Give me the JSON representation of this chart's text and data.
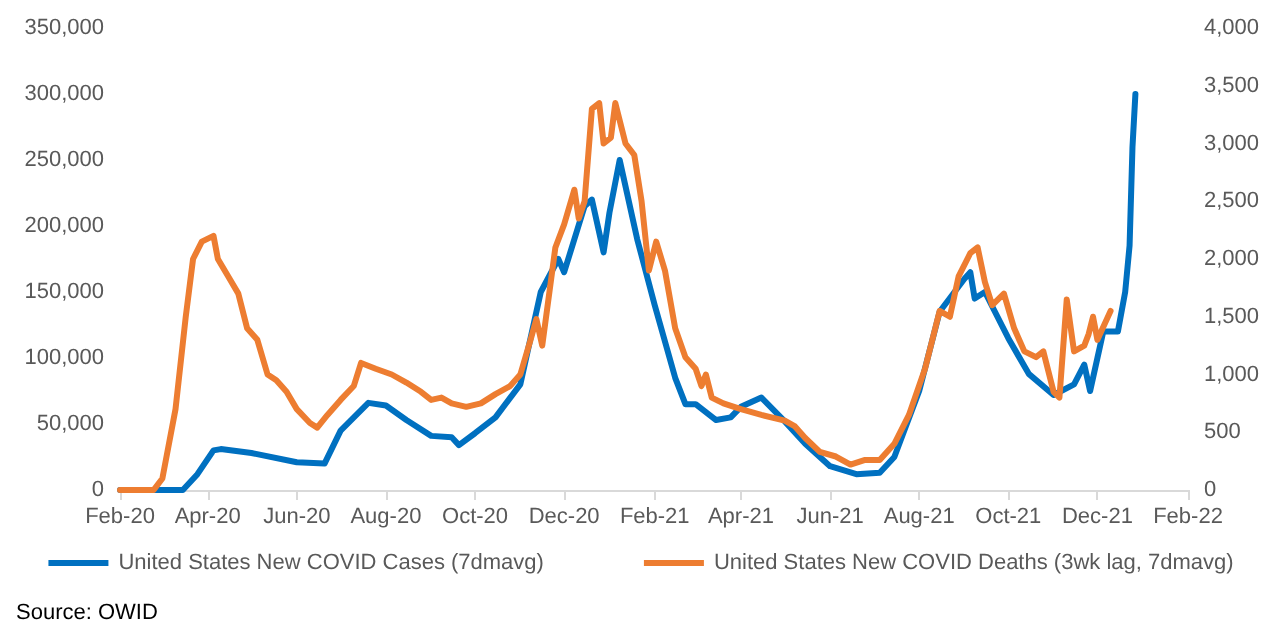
{
  "chart_data": {
    "type": "line",
    "xlim": [
      "2020-02-01",
      "2022-02-01"
    ],
    "xticks": [
      {
        "value": "2020-02-01",
        "label": "Feb-20"
      },
      {
        "value": "2020-04-01",
        "label": "Apr-20"
      },
      {
        "value": "2020-06-01",
        "label": "Jun-20"
      },
      {
        "value": "2020-08-01",
        "label": "Aug-20"
      },
      {
        "value": "2020-10-01",
        "label": "Oct-20"
      },
      {
        "value": "2020-12-01",
        "label": "Dec-20"
      },
      {
        "value": "2021-02-01",
        "label": "Feb-21"
      },
      {
        "value": "2021-04-01",
        "label": "Apr-21"
      },
      {
        "value": "2021-06-01",
        "label": "Jun-21"
      },
      {
        "value": "2021-08-01",
        "label": "Aug-21"
      },
      {
        "value": "2021-10-01",
        "label": "Oct-21"
      },
      {
        "value": "2021-12-01",
        "label": "Dec-21"
      },
      {
        "value": "2022-02-01",
        "label": "Feb-22"
      }
    ],
    "ylim": [
      0,
      350000
    ],
    "yticks": [
      0,
      {
        "value": 50000,
        "label": "50,000"
      },
      {
        "value": 100000,
        "label": "100,000"
      },
      {
        "value": 150000,
        "label": "150,000"
      },
      {
        "value": 200000,
        "label": "200,000"
      },
      {
        "value": 250000,
        "label": "250,000"
      },
      {
        "value": 300000,
        "label": "300,000"
      },
      {
        "value": 350000,
        "label": "350,000"
      }
    ],
    "y2lim": [
      0,
      4000
    ],
    "y2ticks": [
      0,
      500,
      {
        "value": 1000,
        "label": "1,000"
      },
      {
        "value": 1500,
        "label": "1,500"
      },
      {
        "value": 2000,
        "label": "2,000"
      },
      {
        "value": 2500,
        "label": "2,500"
      },
      {
        "value": 3000,
        "label": "3,000"
      },
      {
        "value": 3500,
        "label": "3,500"
      },
      {
        "value": 4000,
        "label": "4,000"
      }
    ],
    "grid": false,
    "legend": "bottom",
    "marker": "none",
    "line_style": "solid",
    "annotations": [
      "Source: OWID"
    ],
    "series": [
      {
        "name": "United States New COVID Cases (7dmavg)",
        "color": "#0070c0",
        "x": [
          "2020-02-01",
          "2020-03-15",
          "2020-03-25",
          "2020-04-05",
          "2020-04-10",
          "2020-05-01",
          "2020-06-01",
          "2020-06-20",
          "2020-07-01",
          "2020-07-20",
          "2020-08-01",
          "2020-08-15",
          "2020-09-01",
          "2020-09-15",
          "2020-09-20",
          "2020-10-01",
          "2020-10-15",
          "2020-11-01",
          "2020-11-15",
          "2020-11-27",
          "2020-12-01",
          "2020-12-15",
          "2020-12-20",
          "2020-12-28",
          "2021-01-01",
          "2021-01-08",
          "2021-01-20",
          "2021-02-01",
          "2021-02-15",
          "2021-02-22",
          "2021-03-01",
          "2021-03-15",
          "2021-03-25",
          "2021-04-01",
          "2021-04-15",
          "2021-05-01",
          "2021-05-15",
          "2021-06-01",
          "2021-06-19",
          "2021-07-05",
          "2021-07-15",
          "2021-08-01",
          "2021-08-15",
          "2021-09-01",
          "2021-09-05",
          "2021-09-08",
          "2021-09-15",
          "2021-10-01",
          "2021-10-15",
          "2021-11-01",
          "2021-11-15",
          "2021-11-22",
          "2021-11-26",
          "2021-12-01",
          "2021-12-05",
          "2021-12-15",
          "2021-12-20",
          "2021-12-23",
          "2021-12-25",
          "2021-12-27"
        ],
        "values": [
          0,
          0,
          12000,
          30000,
          31000,
          28000,
          21000,
          20000,
          45000,
          66000,
          64000,
          53000,
          41000,
          40000,
          34000,
          43000,
          55000,
          80000,
          150000,
          175000,
          165000,
          215000,
          220000,
          180000,
          210000,
          250000,
          190000,
          140000,
          85000,
          65000,
          65000,
          53000,
          55000,
          63000,
          70000,
          52000,
          35000,
          18000,
          12000,
          13000,
          25000,
          75000,
          135000,
          160000,
          165000,
          145000,
          150000,
          115000,
          88000,
          72000,
          80000,
          95000,
          75000,
          100000,
          120000,
          120000,
          150000,
          185000,
          260000,
          300000
        ]
      },
      {
        "name": "United States New COVID Deaths (3wk lag, 7dmavg)",
        "color": "#ed7d31",
        "axis": "y2",
        "x": [
          "2020-02-01",
          "2020-02-24",
          "2020-03-01",
          "2020-03-10",
          "2020-03-17",
          "2020-03-22",
          "2020-03-28",
          "2020-04-05",
          "2020-04-08",
          "2020-04-15",
          "2020-04-22",
          "2020-04-28",
          "2020-05-05",
          "2020-05-12",
          "2020-05-18",
          "2020-05-25",
          "2020-06-01",
          "2020-06-10",
          "2020-06-15",
          "2020-06-22",
          "2020-07-01",
          "2020-07-10",
          "2020-07-15",
          "2020-07-25",
          "2020-08-05",
          "2020-08-15",
          "2020-08-25",
          "2020-09-01",
          "2020-09-08",
          "2020-09-15",
          "2020-09-25",
          "2020-10-05",
          "2020-10-15",
          "2020-10-25",
          "2020-11-01",
          "2020-11-08",
          "2020-11-12",
          "2020-11-16",
          "2020-11-25",
          "2020-12-01",
          "2020-12-08",
          "2020-12-11",
          "2020-12-15",
          "2020-12-20",
          "2020-12-25",
          "2020-12-28",
          "2021-01-02",
          "2021-01-05",
          "2021-01-12",
          "2021-01-18",
          "2021-01-23",
          "2021-01-28",
          "2021-02-02",
          "2021-02-08",
          "2021-02-15",
          "2021-02-22",
          "2021-03-01",
          "2021-03-05",
          "2021-03-08",
          "2021-03-12",
          "2021-03-20",
          "2021-04-01",
          "2021-04-15",
          "2021-05-01",
          "2021-05-08",
          "2021-05-15",
          "2021-05-25",
          "2021-06-05",
          "2021-06-15",
          "2021-06-25",
          "2021-07-05",
          "2021-07-15",
          "2021-07-25",
          "2021-08-05",
          "2021-08-15",
          "2021-08-22",
          "2021-08-28",
          "2021-09-05",
          "2021-09-10",
          "2021-09-15",
          "2021-09-20",
          "2021-09-28",
          "2021-10-05",
          "2021-10-12",
          "2021-10-20",
          "2021-10-25",
          "2021-11-01",
          "2021-11-05",
          "2021-11-10",
          "2021-11-15",
          "2021-11-22",
          "2021-11-25",
          "2021-11-28",
          "2021-12-01",
          "2021-12-10"
        ],
        "values": [
          0,
          0,
          100,
          700,
          1500,
          2000,
          2150,
          2200,
          2000,
          1850,
          1700,
          1400,
          1300,
          1000,
          950,
          850,
          700,
          580,
          540,
          650,
          780,
          900,
          1100,
          1050,
          1000,
          930,
          850,
          780,
          800,
          750,
          720,
          750,
          830,
          900,
          1000,
          1300,
          1480,
          1250,
          2100,
          2300,
          2600,
          2350,
          2500,
          3300,
          3350,
          3000,
          3050,
          3350,
          3000,
          2900,
          2500,
          1900,
          2150,
          1900,
          1400,
          1150,
          1050,
          900,
          1000,
          800,
          750,
          700,
          650,
          600,
          550,
          450,
          330,
          290,
          220,
          260,
          260,
          400,
          650,
          1050,
          1550,
          1500,
          1850,
          2050,
          2100,
          1800,
          1600,
          1700,
          1400,
          1200,
          1150,
          1200,
          850,
          800,
          1650,
          1200,
          1250,
          1350,
          1500,
          1300,
          1550
        ]
      }
    ]
  }
}
